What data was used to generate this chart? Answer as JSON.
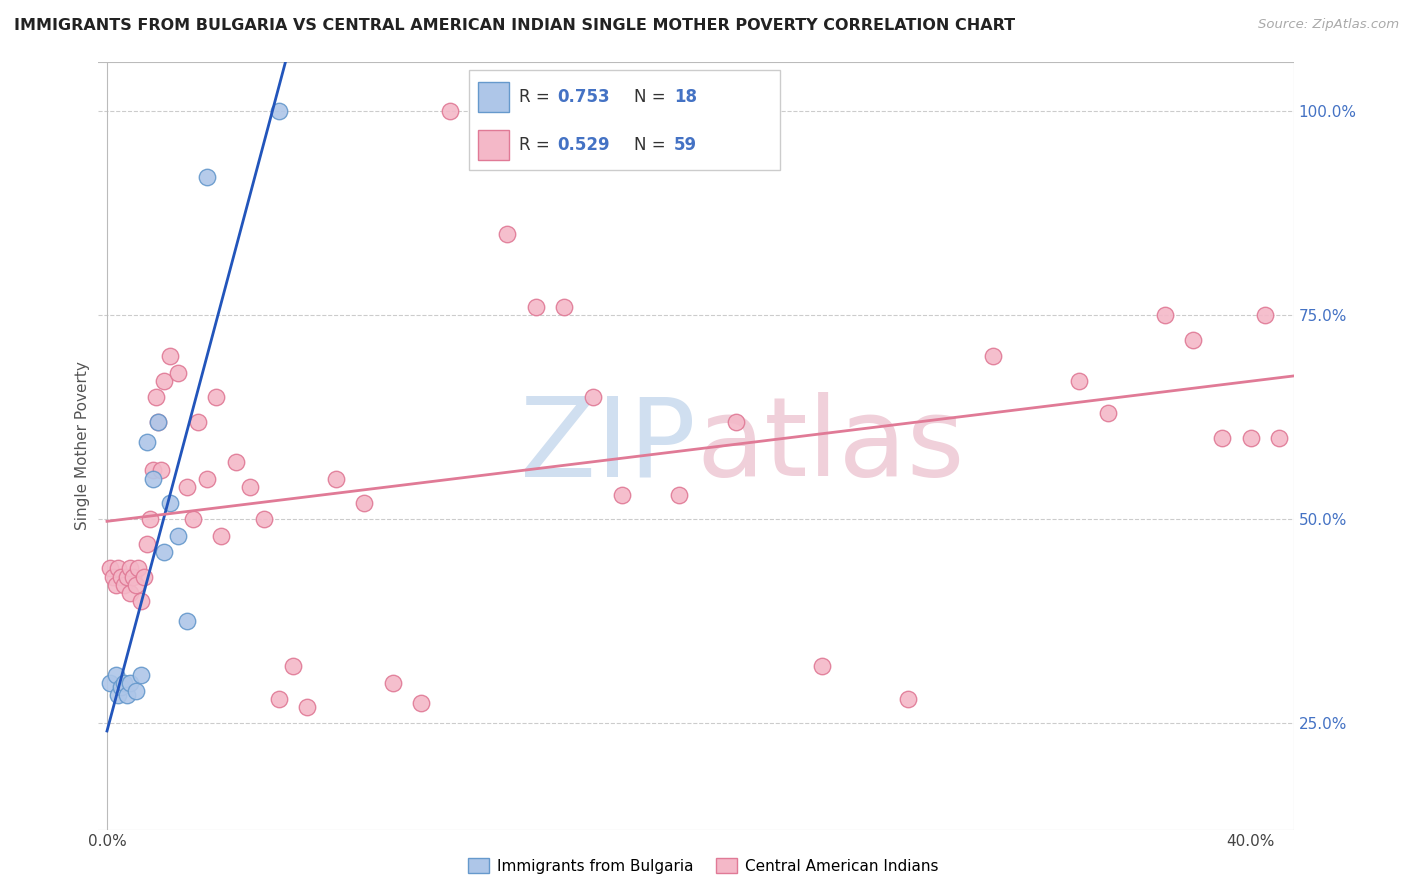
{
  "title": "IMMIGRANTS FROM BULGARIA VS CENTRAL AMERICAN INDIAN SINGLE MOTHER POVERTY CORRELATION CHART",
  "source": "Source: ZipAtlas.com",
  "ylabel": "Single Mother Poverty",
  "x_ticks": [
    0.0,
    0.05,
    0.1,
    0.15,
    0.2,
    0.25,
    0.3,
    0.35,
    0.4
  ],
  "x_tick_labels": [
    "0.0%",
    "",
    "",
    "",
    "",
    "",
    "",
    "",
    "40.0%"
  ],
  "y_ticks_right": [
    0.25,
    0.5,
    0.75,
    1.0
  ],
  "y_tick_labels_right": [
    "25.0%",
    "50.0%",
    "75.0%",
    "100.0%"
  ],
  "xlim": [
    -0.003,
    0.415
  ],
  "ylim": [
    0.12,
    1.06
  ],
  "bulgaria_color": "#aec6e8",
  "bulgaria_edge_color": "#6699cc",
  "central_american_color": "#f4b8c8",
  "central_american_edge_color": "#e07a96",
  "bulgaria_R": 0.753,
  "bulgaria_N": 18,
  "central_american_R": 0.529,
  "central_american_N": 59,
  "legend_blue_color": "#4472c4",
  "watermark_color_ZIP": "#d0dff0",
  "watermark_color_atlas": "#f0d0da",
  "bulgaria_line_color": "#2255bb",
  "central_american_line_color": "#e07a96",
  "bulgaria_x": [
    0.001,
    0.003,
    0.004,
    0.005,
    0.006,
    0.007,
    0.008,
    0.01,
    0.012,
    0.014,
    0.016,
    0.018,
    0.02,
    0.022,
    0.025,
    0.028,
    0.035,
    0.06
  ],
  "bulgaria_y": [
    0.3,
    0.31,
    0.285,
    0.295,
    0.3,
    0.285,
    0.3,
    0.29,
    0.31,
    0.595,
    0.55,
    0.62,
    0.46,
    0.52,
    0.48,
    0.375,
    0.92,
    1.0
  ],
  "central_american_x": [
    0.001,
    0.002,
    0.003,
    0.004,
    0.005,
    0.006,
    0.007,
    0.008,
    0.008,
    0.009,
    0.01,
    0.011,
    0.012,
    0.013,
    0.014,
    0.015,
    0.016,
    0.017,
    0.018,
    0.019,
    0.02,
    0.022,
    0.025,
    0.028,
    0.03,
    0.032,
    0.035,
    0.038,
    0.04,
    0.045,
    0.05,
    0.055,
    0.06,
    0.065,
    0.07,
    0.08,
    0.09,
    0.1,
    0.11,
    0.12,
    0.13,
    0.14,
    0.15,
    0.16,
    0.17,
    0.18,
    0.2,
    0.22,
    0.25,
    0.28,
    0.31,
    0.34,
    0.35,
    0.37,
    0.38,
    0.39,
    0.4,
    0.405,
    0.41
  ],
  "central_american_y": [
    0.44,
    0.43,
    0.42,
    0.44,
    0.43,
    0.42,
    0.43,
    0.41,
    0.44,
    0.43,
    0.42,
    0.44,
    0.4,
    0.43,
    0.47,
    0.5,
    0.56,
    0.65,
    0.62,
    0.56,
    0.67,
    0.7,
    0.68,
    0.54,
    0.5,
    0.62,
    0.55,
    0.65,
    0.48,
    0.57,
    0.54,
    0.5,
    0.28,
    0.32,
    0.27,
    0.55,
    0.52,
    0.3,
    0.275,
    1.0,
    1.0,
    0.85,
    0.76,
    0.76,
    0.65,
    0.53,
    0.53,
    0.62,
    0.32,
    0.28,
    0.7,
    0.67,
    0.63,
    0.75,
    0.72,
    0.6,
    0.6,
    0.75,
    0.6
  ]
}
